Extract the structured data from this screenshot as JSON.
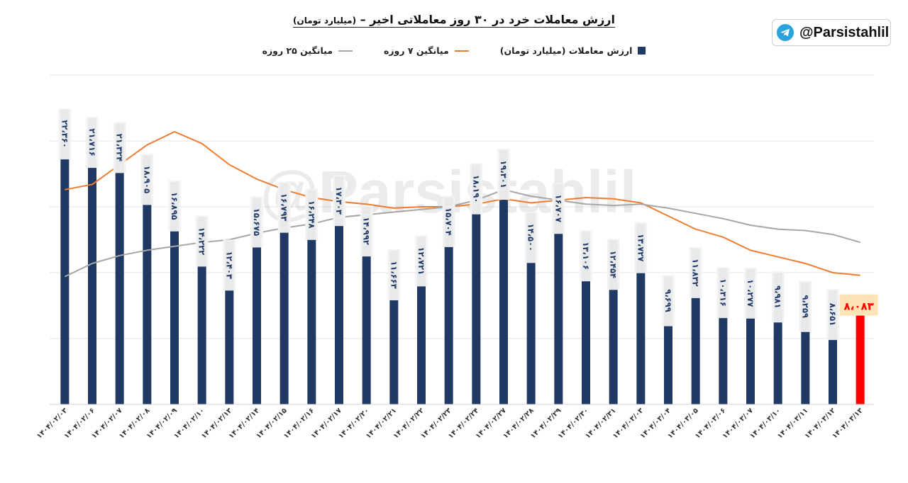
{
  "title": "ارزش معاملات خرد در ۳۰ روز معاملاتی اخیر –",
  "subtitle": "(میلیارد تومان)",
  "brand": {
    "handle": "@Parsistahlil",
    "icon": "telegram-icon"
  },
  "watermark": "@Parsistahlil",
  "legend": {
    "bars": "ارزش معاملات (میلیارد تومان)",
    "ma7": "میانگین ۷ روزه",
    "ma25": "میانگین ۲۵ روزه"
  },
  "colors": {
    "bar": "#1f3864",
    "last_bar": "#ff0000",
    "ma7": "#ed7d31",
    "ma25": "#a6a6a6",
    "last_label_bg": "#fce4b6"
  },
  "chart_data": {
    "type": "bar",
    "ylim": [
      0,
      25000
    ],
    "grid": true,
    "categories": [
      "۱۴۰۴/۰۲/۰۳",
      "۱۴۰۴/۰۲/۰۶",
      "۱۴۰۴/۰۲/۰۷",
      "۱۴۰۴/۰۲/۰۸",
      "۱۴۰۴/۰۲/۰۹",
      "۱۴۰۴/۰۲/۱۰",
      "۱۴۰۴/۰۲/۱۳",
      "۱۴۰۴/۰۲/۱۴",
      "۱۴۰۴/۰۲/۱۵",
      "۱۴۰۴/۰۲/۱۶",
      "۱۴۰۴/۰۲/۱۷",
      "۱۴۰۴/۰۲/۲۰",
      "۱۴۰۴/۰۲/۲۱",
      "۱۴۰۴/۰۲/۲۲",
      "۱۴۰۴/۰۲/۲۳",
      "۱۴۰۴/۰۲/۲۴",
      "۱۴۰۴/۰۲/۲۷",
      "۱۴۰۴/۰۲/۲۸",
      "۱۴۰۴/۰۲/۲۹",
      "۱۴۰۴/۰۲/۳۰",
      "۱۴۰۴/۰۲/۳۱",
      "۱۴۰۴/۰۳/۰۳",
      "۱۴۰۴/۰۳/۰۴",
      "۱۴۰۴/۰۳/۰۵",
      "۱۴۰۴/۰۳/۰۶",
      "۱۴۰۴/۰۳/۰۷",
      "۱۴۰۴/۰۳/۱۰",
      "۱۴۰۴/۰۳/۱۱",
      "۱۴۰۴/۰۳/۱۲",
      "۱۴۰۴/۰۳/۱۳"
    ],
    "series": [
      {
        "name": "ارزش معاملات (میلیارد تومان)",
        "values": [
          22360,
          21716,
          21324,
          18905,
          16895,
          14222,
          12403,
          15675,
          16793,
          16248,
          17303,
          14992,
          11663,
          12721,
          15704,
          18190,
          19301,
          14500,
          16707,
          13106,
          12454,
          13727,
          9699,
          11832,
          10316,
          10277,
          9981,
          9259,
          8651,
          8083
        ],
        "labels": [
          "۲۲،۳۶۰",
          "۲۱،۷۱۶",
          "۲۱،۳۲۴",
          "۱۸،۹۰۵",
          "۱۶،۸۹۵",
          "۱۴،۲۲۲",
          "۱۲،۴۰۳",
          "۱۵،۶۷۵",
          "۱۶،۷۹۳",
          "۱۶،۲۴۸",
          "۱۷،۳۰۳",
          "۱۴،۹۹۲",
          "۱۱،۶۶۳",
          "۱۲،۷۲۱",
          "۱۵،۷۰۴",
          "۱۸،۱۹۰",
          "۱۹،۳۰۱",
          "۱۴،۵۰۰",
          "۱۶،۷۰۷",
          "۱۳،۱۰۶",
          "۱۲،۴۵۴",
          "۱۳،۷۲۷",
          "۹،۶۹۹",
          "۱۱،۸۳۲",
          "۱۰،۳۱۶",
          "۱۰،۲۷۷",
          "۹،۹۸۱",
          "۹،۲۵۹",
          "۸،۶۵۱",
          "۸،۰۸۳"
        ]
      },
      {
        "name": "میانگین ۷ روزه",
        "values": [
          16300,
          16700,
          18200,
          19700,
          20700,
          19800,
          18200,
          17100,
          16300,
          15700,
          15400,
          15200,
          14900,
          15000,
          15000,
          15200,
          15600,
          15300,
          15500,
          15700,
          15600,
          15300,
          14300,
          13300,
          12700,
          11700,
          11200,
          10700,
          10000,
          9800
        ]
      },
      {
        "name": "میانگین ۲۵ روزه",
        "values": [
          9700,
          10700,
          11300,
          11700,
          12000,
          12300,
          12500,
          13000,
          13400,
          13700,
          14200,
          14400,
          14600,
          14800,
          15000,
          15500,
          16300,
          15800,
          15500,
          15200,
          15100,
          15200,
          14900,
          14500,
          14100,
          13600,
          13300,
          13200,
          12900,
          12300
        ]
      }
    ]
  }
}
